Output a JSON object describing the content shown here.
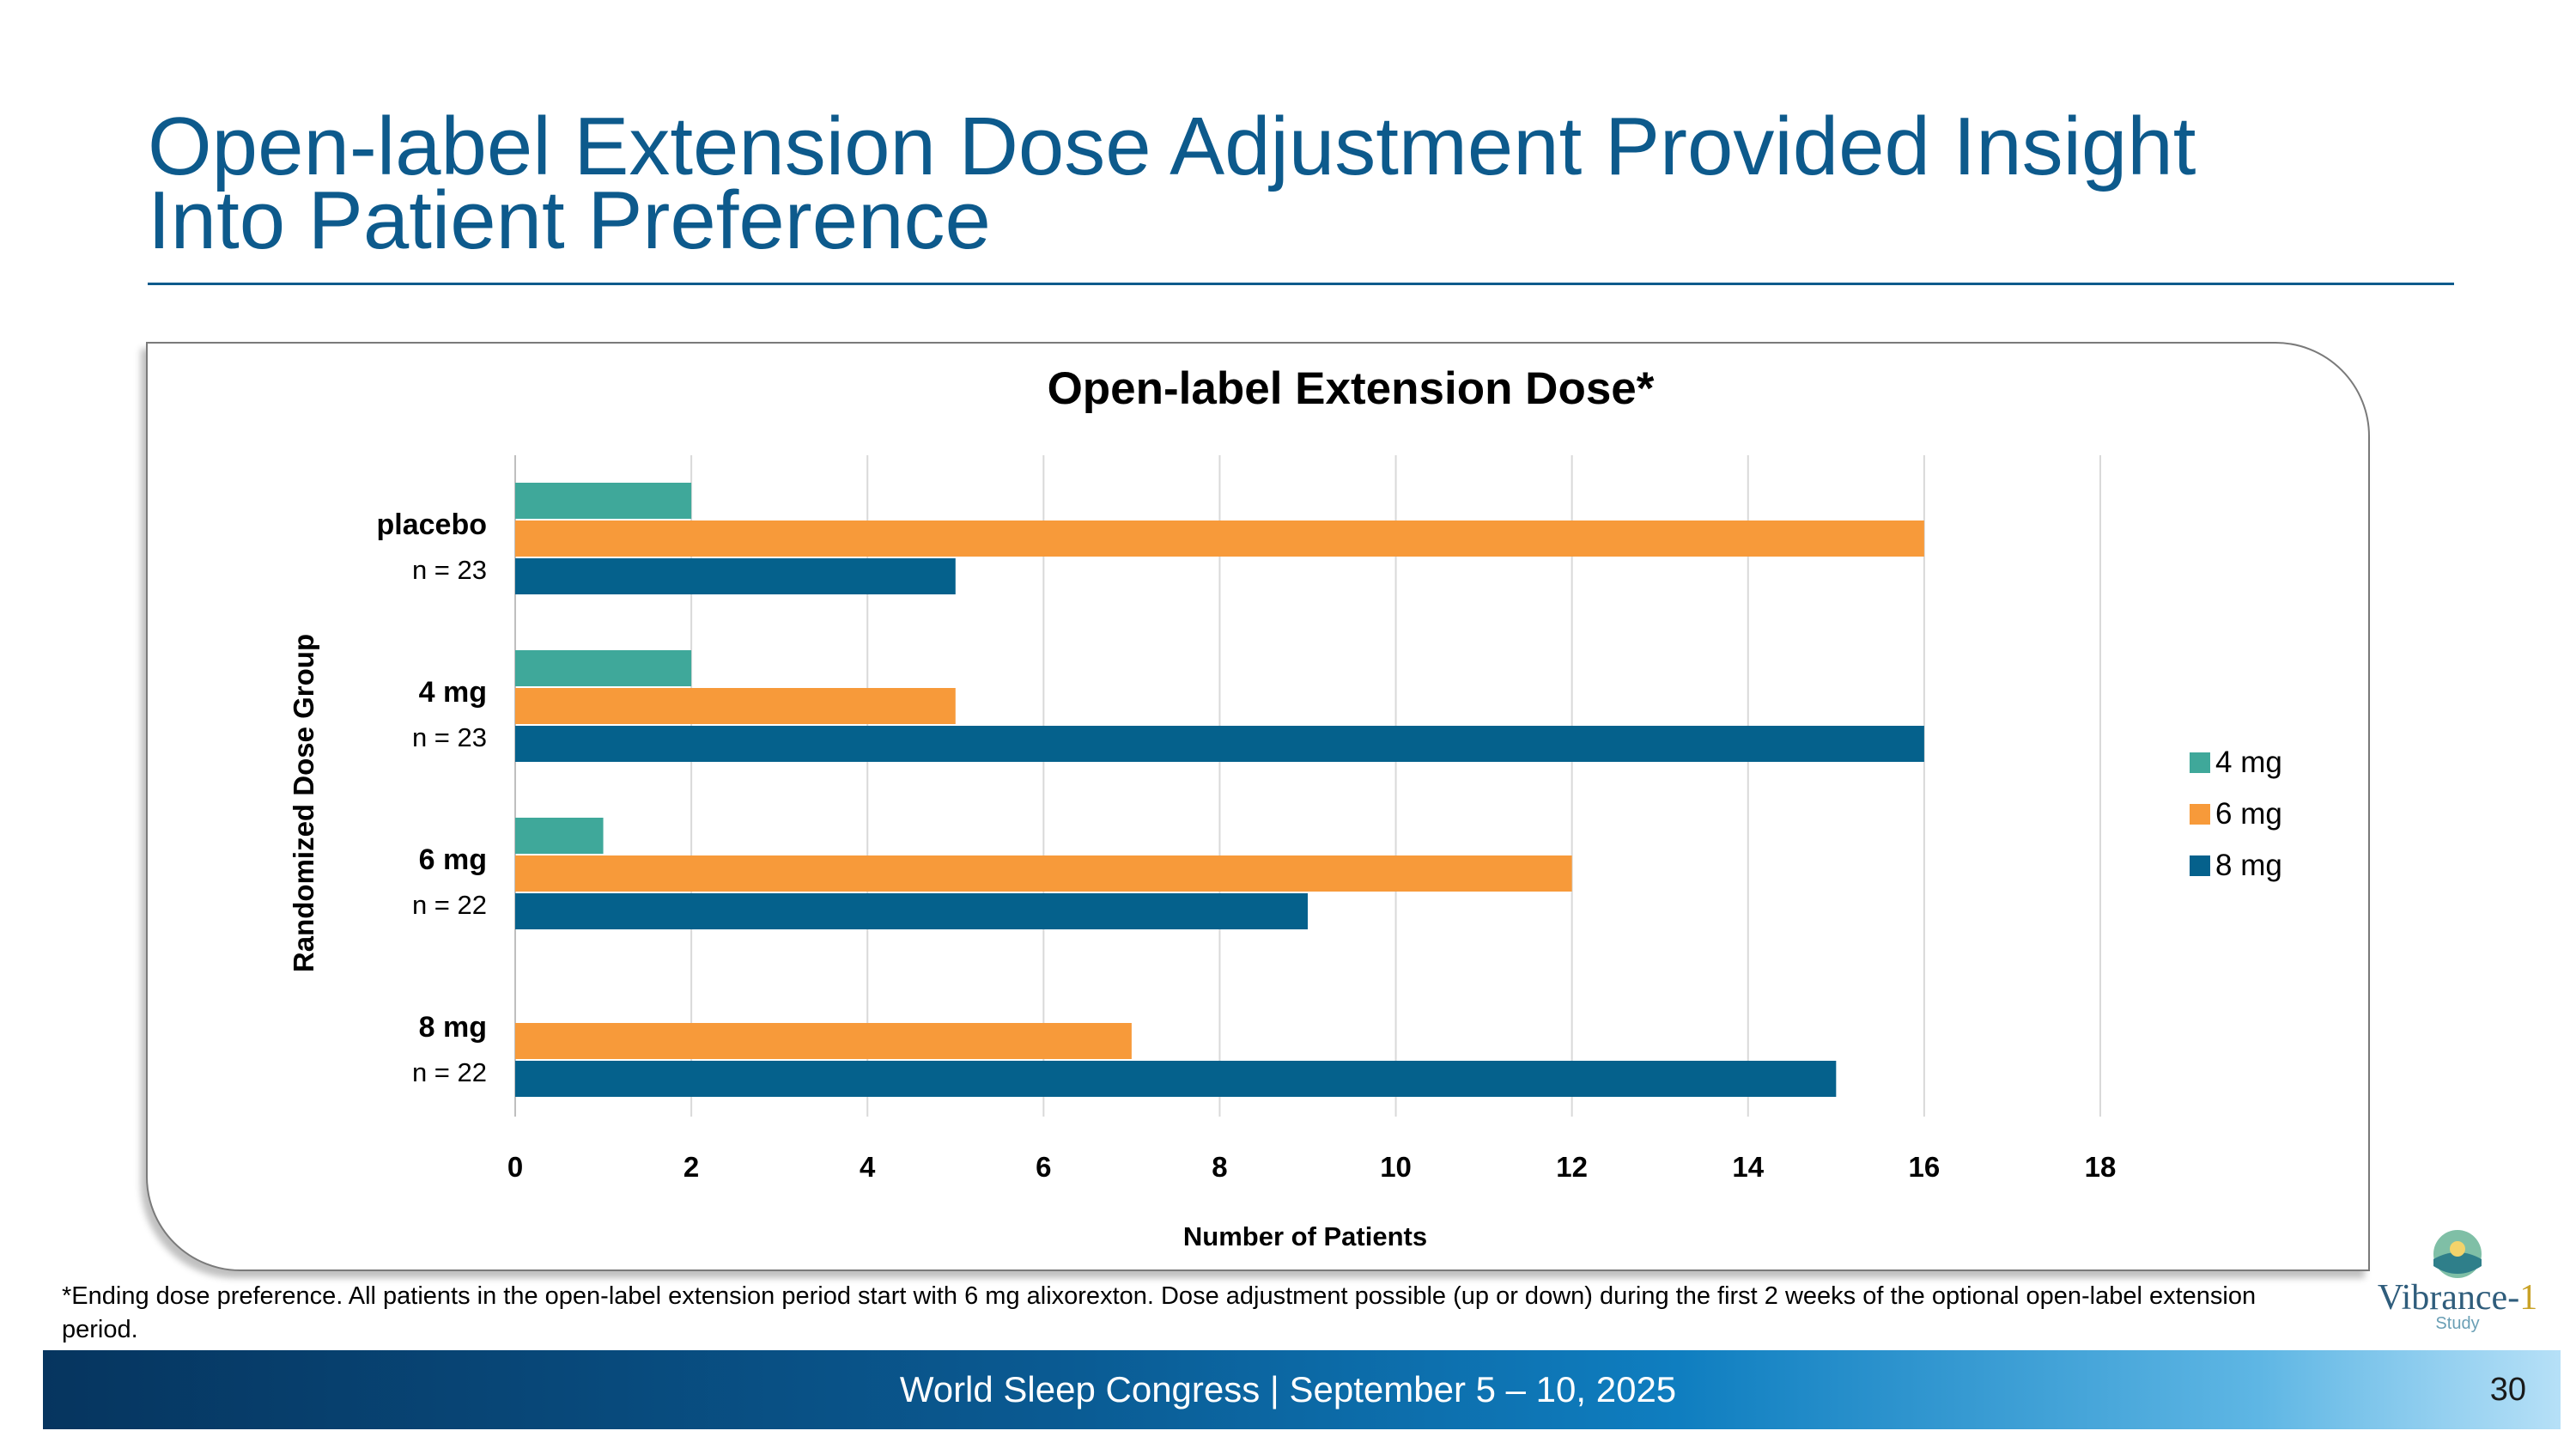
{
  "slide": {
    "title_line1": "Open-label Extension Dose Adjustment Provided Insight",
    "title_line2": "Into Patient Preference",
    "footnote": "*Ending dose preference. All patients in the open-label extension period start with 6 mg alixorexton. Dose adjustment possible (up or down) during the first 2 weeks of the optional open-label extension period.",
    "footer_text": "World Sleep Congress | September 5 – 10, 2025",
    "page_number": "30",
    "logo": {
      "name": "Vibrance-",
      "number": "1",
      "subtitle": "Study"
    },
    "colors": {
      "title": "#0d5a8c",
      "footer_dark": "#06355f",
      "footer_light": "#b6e0f7"
    }
  },
  "chart_data": {
    "type": "bar",
    "orientation": "horizontal",
    "title": "Open-label Extension Dose*",
    "xlabel": "Number of Patients",
    "ylabel": "Randomized Dose Group",
    "xlim": [
      0,
      18
    ],
    "xticks": [
      "0",
      "2",
      "4",
      "6",
      "8",
      "10",
      "12",
      "14",
      "16",
      "18"
    ],
    "grid": true,
    "legend_position": "right",
    "categories": [
      {
        "label": "placebo",
        "n": "n = 23"
      },
      {
        "label": "4 mg",
        "n": "n = 23"
      },
      {
        "label": "6 mg",
        "n": "n = 22"
      },
      {
        "label": "8 mg",
        "n": "n = 22"
      }
    ],
    "series": [
      {
        "name": "4 mg",
        "color": "#3fa89a",
        "values": [
          2,
          2,
          1,
          0
        ]
      },
      {
        "name": "6 mg",
        "color": "#f79a3a",
        "values": [
          16,
          5,
          12,
          7
        ]
      },
      {
        "name": "8 mg",
        "color": "#05618c",
        "values": [
          5,
          16,
          9,
          15
        ]
      }
    ]
  }
}
